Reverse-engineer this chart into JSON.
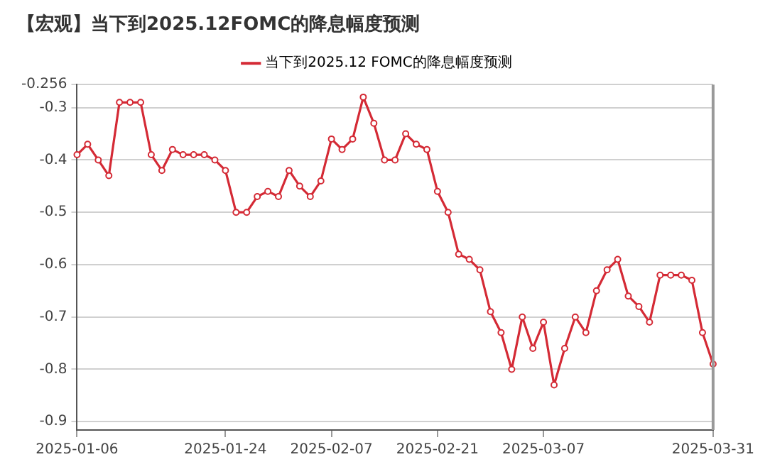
{
  "chart_data": {
    "type": "line",
    "title": "【宏观】当下到2025.12FOMC的降息幅度预测",
    "categories": [
      "2025-01-06",
      null,
      null,
      null,
      null,
      null,
      null,
      null,
      null,
      null,
      null,
      null,
      null,
      null,
      "2025-01-24",
      null,
      null,
      null,
      null,
      null,
      null,
      null,
      null,
      null,
      "2025-02-07",
      null,
      null,
      null,
      null,
      null,
      null,
      null,
      null,
      null,
      "2025-02-21",
      null,
      null,
      null,
      null,
      null,
      null,
      null,
      null,
      null,
      "2025-03-07",
      null,
      null,
      null,
      null,
      null,
      null,
      null,
      null,
      null,
      null,
      null,
      null,
      null,
      null,
      null,
      "2025-03-31"
    ],
    "series": [
      {
        "name": "当下到2025.12 FOMC的降息幅度预测",
        "color": "#d42a35",
        "values": [
          -0.39,
          -0.37,
          -0.4,
          -0.43,
          -0.29,
          -0.29,
          -0.29,
          -0.39,
          -0.42,
          -0.38,
          -0.39,
          -0.39,
          -0.39,
          -0.4,
          -0.42,
          -0.5,
          -0.5,
          -0.47,
          -0.46,
          -0.47,
          -0.42,
          -0.45,
          -0.47,
          -0.44,
          -0.36,
          -0.38,
          -0.36,
          -0.28,
          -0.33,
          -0.4,
          -0.4,
          -0.35,
          -0.37,
          -0.38,
          -0.46,
          -0.5,
          -0.58,
          -0.59,
          -0.61,
          -0.69,
          -0.73,
          -0.8,
          -0.7,
          -0.76,
          -0.71,
          -0.83,
          -0.76,
          -0.7,
          -0.73,
          -0.65,
          -0.61,
          -0.59,
          -0.66,
          -0.68,
          -0.71,
          -0.62,
          -0.62,
          -0.62,
          -0.63,
          -0.73,
          -0.79
        ]
      }
    ],
    "ylim": [
      -0.916,
      -0.256
    ],
    "yticks": [
      -0.256,
      -0.3,
      -0.4,
      -0.5,
      -0.6,
      -0.7,
      -0.8,
      -0.9
    ],
    "grid": "y",
    "legend": "top",
    "marker": "circle",
    "line_style": "solid"
  }
}
